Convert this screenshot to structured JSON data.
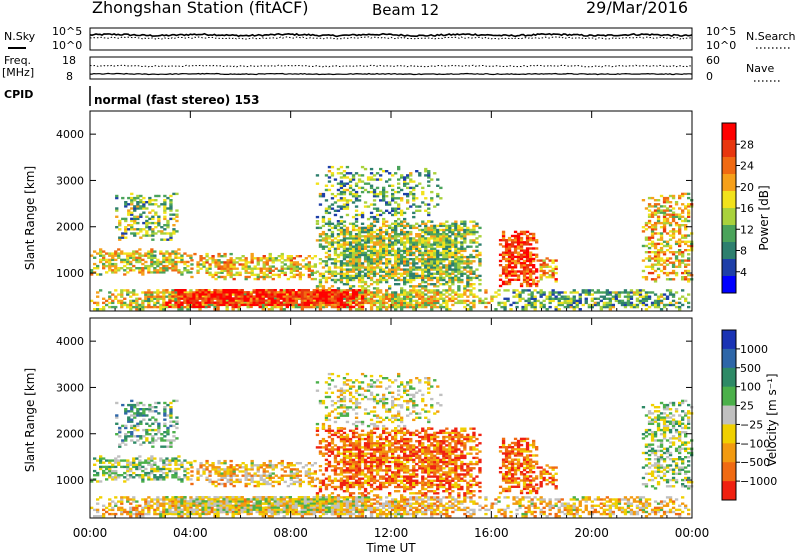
{
  "header": {
    "station": "Zhongshan Station (fitACF)",
    "beam": "Beam 12",
    "date": "29/Mar/2016"
  },
  "sky_panel": {
    "left_label": "N.Sky",
    "right_label": "N.Search",
    "left_ticks": [
      "10^5",
      "10^0"
    ],
    "right_ticks": [
      "10^5",
      "10^0"
    ]
  },
  "freq_panel": {
    "left_label_1": "Freq.",
    "left_label_2": "[MHz]",
    "right_label": "Nave",
    "left_ticks": [
      "18",
      "8"
    ],
    "right_ticks": [
      "60",
      "0"
    ]
  },
  "cpid": {
    "label": "CPID",
    "text": "normal (fast stereo) 153"
  },
  "chart_data": [
    {
      "type": "heatmap",
      "name": "power",
      "ylabel": "Slant Range [km]",
      "ylim": [
        180,
        4500
      ],
      "yticks": [
        "1000",
        "2000",
        "3000",
        "4000"
      ],
      "colorbar_label": "Power [dB]",
      "colorbar_ticks": [
        "4",
        "8",
        "12",
        "16",
        "20",
        "24",
        "28"
      ],
      "colorbar_range": [
        0,
        32
      ],
      "colors": [
        "#0000ff",
        "#1e3fa8",
        "#2d7f6e",
        "#4aa35a",
        "#a9d23c",
        "#f2e21b",
        "#f6a01a",
        "#f06a12",
        "#e8360e",
        "#ff0000"
      ]
    },
    {
      "type": "heatmap",
      "name": "velocity",
      "ylabel": "Slant Range [km]",
      "ylim": [
        180,
        4500
      ],
      "yticks": [
        "1000",
        "2000",
        "3000",
        "4000"
      ],
      "colorbar_label": "Velocity [m s⁻¹]",
      "colorbar_ticks": [
        "1000",
        "500",
        "100",
        "25",
        "−25",
        "−100",
        "−500",
        "−1000"
      ],
      "colors": [
        "#1a33b4",
        "#2e66a8",
        "#2e8a66",
        "#4bb04a",
        "#c0c0c0",
        "#f0d000",
        "#f29a10",
        "#f06a12",
        "#f02010"
      ]
    }
  ],
  "time_axis": {
    "label": "Time UT",
    "ticks": [
      "00:00",
      "04:00",
      "08:00",
      "12:00",
      "16:00",
      "20:00",
      "00:00"
    ]
  }
}
